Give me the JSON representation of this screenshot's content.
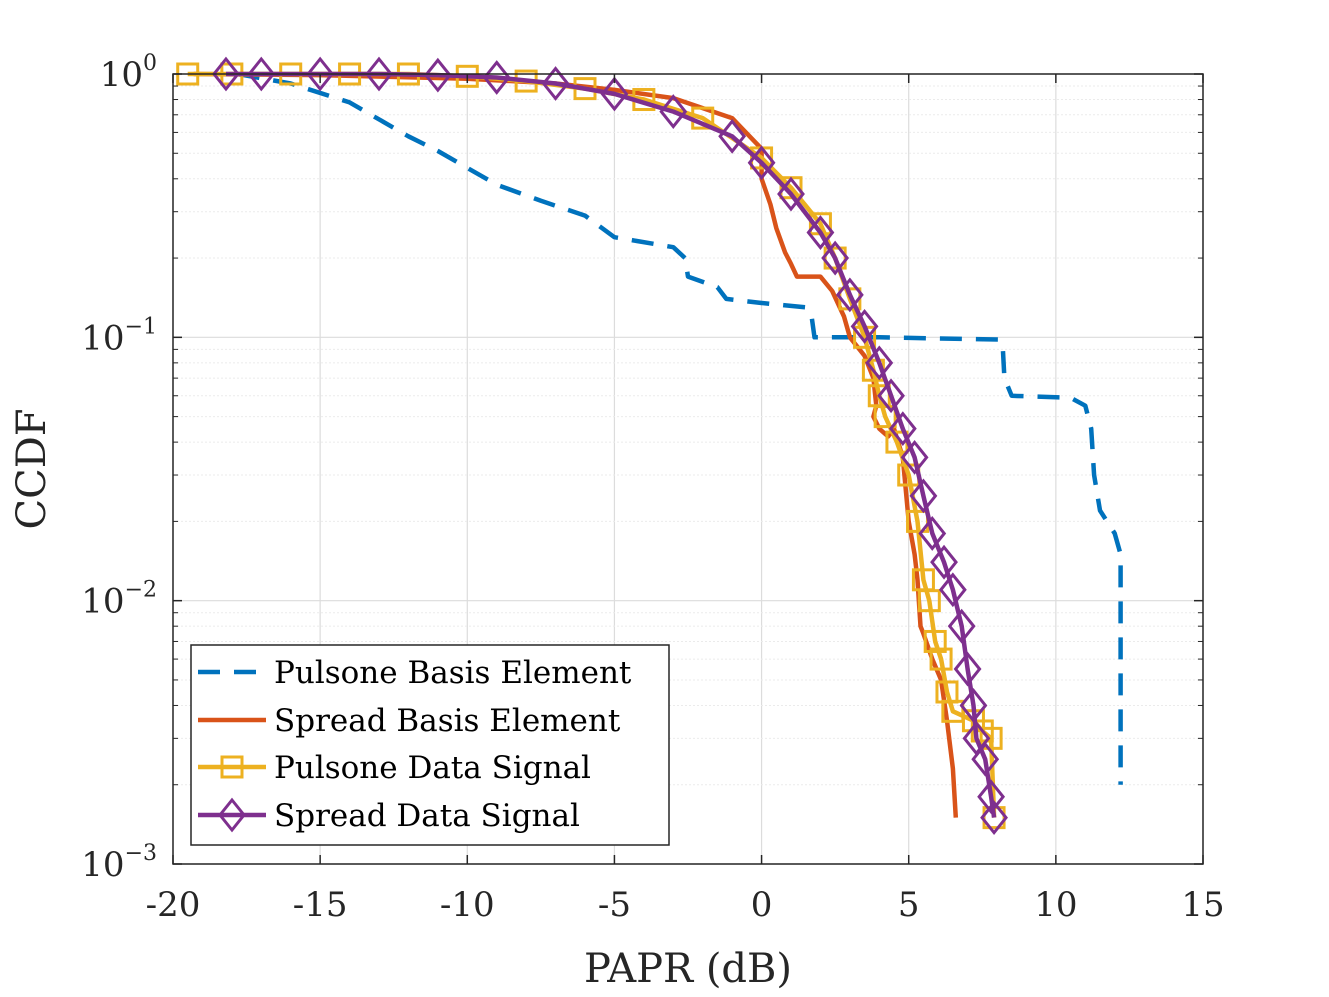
{
  "chart_data": {
    "type": "line",
    "title": "",
    "xlabel": "PAPR (dB)",
    "ylabel": "CCDF",
    "xlim": [
      -20,
      15
    ],
    "ylim": [
      0.001,
      1
    ],
    "yscale": "log",
    "grid": true,
    "minor_grid": true,
    "x_ticks": [
      -20,
      -15,
      -10,
      -5,
      0,
      5,
      10,
      15
    ],
    "x_tick_labels": [
      "-20",
      "-15",
      "-10",
      "-5",
      "0",
      "5",
      "10",
      "15"
    ],
    "y_ticks": [
      1,
      0.1,
      0.01,
      0.001
    ],
    "y_tick_labels": [
      {
        "base": "10",
        "exp": "0"
      },
      {
        "base": "10",
        "exp": "−1"
      },
      {
        "base": "10",
        "exp": "−2"
      },
      {
        "base": "10",
        "exp": "−3"
      }
    ],
    "legend_position": "bottom-left",
    "series": [
      {
        "name": "Pulsone Basis Element",
        "color": "#0072BD",
        "style": "dashed",
        "marker": "none",
        "points": [
          [
            -17.8,
            1.0
          ],
          [
            -16,
            0.92
          ],
          [
            -14,
            0.78
          ],
          [
            -12,
            0.58
          ],
          [
            -11,
            0.51
          ],
          [
            -10,
            0.44
          ],
          [
            -9,
            0.38
          ],
          [
            -7.5,
            0.33
          ],
          [
            -6,
            0.29
          ],
          [
            -5,
            0.24
          ],
          [
            -3,
            0.22
          ],
          [
            -2.6,
            0.2
          ],
          [
            -2.5,
            0.17
          ],
          [
            -1.5,
            0.155
          ],
          [
            -1.2,
            0.14
          ],
          [
            0,
            0.135
          ],
          [
            1.5,
            0.13
          ],
          [
            1.7,
            0.12
          ],
          [
            1.8,
            0.1
          ],
          [
            4,
            0.1
          ],
          [
            8.1,
            0.098
          ],
          [
            8.2,
            0.09
          ],
          [
            8.25,
            0.07
          ],
          [
            8.5,
            0.06
          ],
          [
            10.5,
            0.059
          ],
          [
            11,
            0.055
          ],
          [
            11.2,
            0.045
          ],
          [
            11.3,
            0.03
          ],
          [
            11.5,
            0.022
          ],
          [
            12,
            0.018
          ],
          [
            12.2,
            0.015
          ],
          [
            12.2,
            0.002
          ]
        ]
      },
      {
        "name": "Spread Basis Element",
        "color": "#D95319",
        "style": "solid",
        "marker": "none",
        "points": [
          [
            -19.3,
            1.0
          ],
          [
            -15,
            0.99
          ],
          [
            -10,
            0.96
          ],
          [
            -7,
            0.92
          ],
          [
            -5,
            0.87
          ],
          [
            -3,
            0.81
          ],
          [
            -1,
            0.68
          ],
          [
            0,
            0.52
          ],
          [
            0,
            0.4
          ],
          [
            0.3,
            0.32
          ],
          [
            0.5,
            0.26
          ],
          [
            0.8,
            0.21
          ],
          [
            1,
            0.19
          ],
          [
            1.2,
            0.17
          ],
          [
            2,
            0.17
          ],
          [
            2.4,
            0.15
          ],
          [
            2.8,
            0.12
          ],
          [
            3,
            0.1
          ],
          [
            3.5,
            0.085
          ],
          [
            3.8,
            0.07
          ],
          [
            3.9,
            0.055
          ],
          [
            3.8,
            0.05
          ],
          [
            4,
            0.045
          ],
          [
            4.3,
            0.042
          ],
          [
            4.5,
            0.045
          ],
          [
            4.8,
            0.035
          ],
          [
            5,
            0.02
          ],
          [
            5.2,
            0.015
          ],
          [
            5.3,
            0.012
          ],
          [
            5.4,
            0.008
          ],
          [
            5.5,
            0.0075
          ],
          [
            5.8,
            0.006
          ],
          [
            6.1,
            0.005
          ],
          [
            6.3,
            0.0035
          ],
          [
            6.5,
            0.0023
          ],
          [
            6.6,
            0.0015
          ]
        ]
      },
      {
        "name": "Pulsone Data Signal",
        "color": "#EDB120",
        "style": "solid",
        "marker": "square",
        "points": [
          [
            -19.5,
            1.0
          ],
          [
            -18,
            1.0
          ],
          [
            -16,
            1.0
          ],
          [
            -14,
            1.0
          ],
          [
            -12,
            1.0
          ],
          [
            -10,
            0.98
          ],
          [
            -8,
            0.94
          ],
          [
            -6,
            0.88
          ],
          [
            -4,
            0.8
          ],
          [
            -2,
            0.68
          ],
          [
            0,
            0.48
          ],
          [
            1,
            0.37
          ],
          [
            2,
            0.27
          ],
          [
            2.5,
            0.2
          ],
          [
            3,
            0.14
          ],
          [
            3.5,
            0.1
          ],
          [
            3.8,
            0.075
          ],
          [
            4,
            0.06
          ],
          [
            4.2,
            0.05
          ],
          [
            4.6,
            0.04
          ],
          [
            5,
            0.03
          ],
          [
            5.3,
            0.02
          ],
          [
            5.5,
            0.012
          ],
          [
            5.7,
            0.01
          ],
          [
            5.9,
            0.007
          ],
          [
            6.1,
            0.006
          ],
          [
            6.3,
            0.0045
          ],
          [
            6.5,
            0.0038
          ],
          [
            7.2,
            0.0035
          ],
          [
            7.5,
            0.0032
          ],
          [
            7.8,
            0.003
          ],
          [
            7.9,
            0.0015
          ]
        ]
      },
      {
        "name": "Spread Data Signal",
        "color": "#7E2F8E",
        "style": "solid",
        "marker": "diamond",
        "points": [
          [
            -18.2,
            1.0
          ],
          [
            -17,
            1.0
          ],
          [
            -15,
            1.0
          ],
          [
            -13,
            1.0
          ],
          [
            -11,
            0.99
          ],
          [
            -9,
            0.97
          ],
          [
            -7,
            0.92
          ],
          [
            -5,
            0.84
          ],
          [
            -3,
            0.72
          ],
          [
            -1,
            0.58
          ],
          [
            0,
            0.46
          ],
          [
            1,
            0.35
          ],
          [
            2,
            0.25
          ],
          [
            2.5,
            0.2
          ],
          [
            3,
            0.145
          ],
          [
            3.5,
            0.11
          ],
          [
            4,
            0.08
          ],
          [
            4.4,
            0.06
          ],
          [
            4.8,
            0.045
          ],
          [
            5.2,
            0.035
          ],
          [
            5.5,
            0.025
          ],
          [
            5.8,
            0.018
          ],
          [
            6.2,
            0.014
          ],
          [
            6.5,
            0.011
          ],
          [
            6.8,
            0.008
          ],
          [
            7,
            0.0055
          ],
          [
            7.2,
            0.004
          ],
          [
            7.3,
            0.003
          ],
          [
            7.6,
            0.0025
          ],
          [
            7.8,
            0.0018
          ],
          [
            7.9,
            0.0015
          ]
        ]
      }
    ]
  }
}
